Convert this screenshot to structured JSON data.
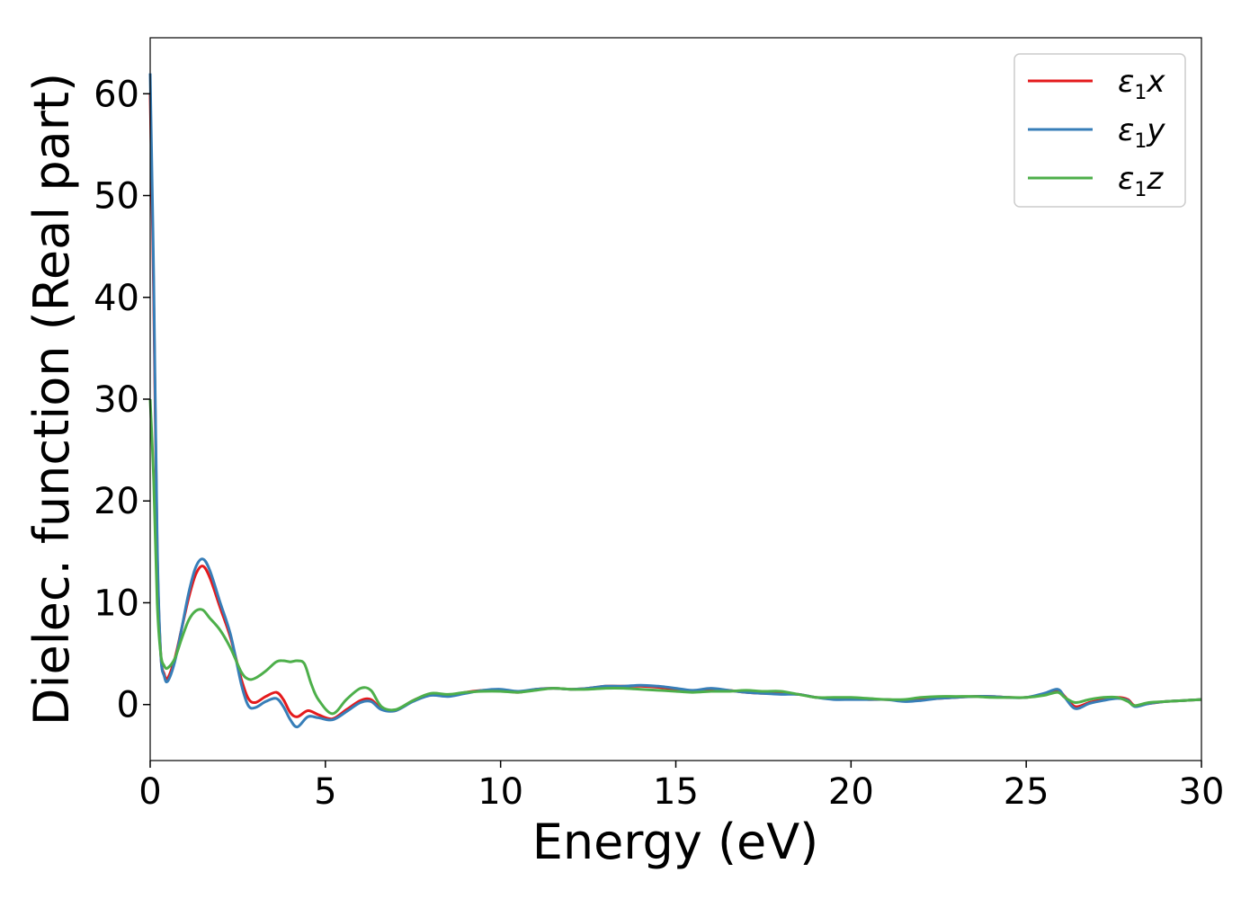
{
  "chart_data": {
    "type": "line",
    "xlabel": "Energy (eV)",
    "ylabel": "Dielec. function (Real part)",
    "xlim": [
      0,
      30
    ],
    "ylim": [
      -5.5,
      65.5
    ],
    "xticks": [
      0,
      5,
      10,
      15,
      20,
      25,
      30
    ],
    "yticks": [
      0,
      10,
      20,
      30,
      40,
      50,
      60
    ],
    "grid": false,
    "legend_position": "top-right",
    "series": [
      {
        "name": "ε1x",
        "legend_base": "ε",
        "legend_sub": "1",
        "legend_var": "x",
        "color": "#e41a1c",
        "x": [
          0,
          0.1,
          0.2,
          0.3,
          0.4,
          0.5,
          0.7,
          0.9,
          1.1,
          1.3,
          1.5,
          1.7,
          2.0,
          2.3,
          2.6,
          2.8,
          3.0,
          3.3,
          3.6,
          3.8,
          4.0,
          4.2,
          4.5,
          4.8,
          5.2,
          5.6,
          6.0,
          6.3,
          6.6,
          7.0,
          7.5,
          8.0,
          8.5,
          9.0,
          9.5,
          10.0,
          10.5,
          11.0,
          11.5,
          12.0,
          12.5,
          13.0,
          13.5,
          14.0,
          14.5,
          15.0,
          15.5,
          16.0,
          16.5,
          17.0,
          17.5,
          18.0,
          18.5,
          19.0,
          19.5,
          20.0,
          20.5,
          21.0,
          21.5,
          22.0,
          22.5,
          23.0,
          23.5,
          24.0,
          24.5,
          25.0,
          25.5,
          25.9,
          26.1,
          26.4,
          26.8,
          27.2,
          27.6,
          27.9,
          28.1,
          28.5,
          29.0,
          29.5,
          30.0
        ],
        "y": [
          60,
          40,
          15,
          5,
          3,
          2.6,
          4.5,
          7.5,
          10.5,
          12.8,
          13.6,
          12.5,
          9.5,
          6.5,
          2.5,
          0.6,
          0.2,
          0.8,
          1.2,
          0.5,
          -0.8,
          -1.2,
          -0.6,
          -1.0,
          -1.4,
          -0.5,
          0.4,
          0.5,
          -0.4,
          -0.6,
          0.4,
          1.0,
          0.9,
          1.2,
          1.4,
          1.4,
          1.2,
          1.5,
          1.6,
          1.5,
          1.6,
          1.8,
          1.8,
          1.8,
          1.7,
          1.5,
          1.3,
          1.5,
          1.4,
          1.2,
          1.1,
          1.1,
          1.0,
          0.7,
          0.6,
          0.6,
          0.5,
          0.5,
          0.4,
          0.5,
          0.6,
          0.7,
          0.8,
          0.8,
          0.7,
          0.7,
          1.0,
          1.4,
          0.8,
          -0.2,
          0.2,
          0.5,
          0.7,
          0.5,
          -0.1,
          0.1,
          0.3,
          0.4,
          0.5
        ]
      },
      {
        "name": "ε1y",
        "legend_base": "ε",
        "legend_sub": "1",
        "legend_var": "y",
        "color": "#377eb8",
        "x": [
          0,
          0.1,
          0.2,
          0.3,
          0.4,
          0.5,
          0.7,
          0.9,
          1.1,
          1.3,
          1.5,
          1.7,
          2.0,
          2.3,
          2.6,
          2.8,
          3.0,
          3.3,
          3.6,
          3.8,
          4.0,
          4.2,
          4.5,
          4.8,
          5.2,
          5.6,
          6.0,
          6.3,
          6.6,
          7.0,
          7.5,
          8.0,
          8.5,
          9.0,
          9.5,
          10.0,
          10.5,
          11.0,
          11.5,
          12.0,
          12.5,
          13.0,
          13.5,
          14.0,
          14.5,
          15.0,
          15.5,
          16.0,
          16.5,
          17.0,
          17.5,
          18.0,
          18.5,
          19.0,
          19.5,
          20.0,
          20.5,
          21.0,
          21.5,
          22.0,
          22.5,
          23.0,
          23.5,
          24.0,
          24.5,
          25.0,
          25.5,
          25.9,
          26.1,
          26.4,
          26.8,
          27.2,
          27.6,
          27.9,
          28.1,
          28.5,
          29.0,
          29.5,
          30.0
        ],
        "y": [
          62,
          42,
          16,
          5,
          2.8,
          2.3,
          4.2,
          7.5,
          11.0,
          13.5,
          14.3,
          13.2,
          10.0,
          6.8,
          2.0,
          -0.1,
          -0.3,
          0.3,
          0.6,
          -0.2,
          -1.5,
          -2.2,
          -1.2,
          -1.3,
          -1.5,
          -0.7,
          0.2,
          0.3,
          -0.5,
          -0.6,
          0.3,
          0.9,
          0.8,
          1.1,
          1.4,
          1.5,
          1.3,
          1.5,
          1.6,
          1.5,
          1.6,
          1.8,
          1.8,
          1.9,
          1.8,
          1.6,
          1.4,
          1.6,
          1.4,
          1.2,
          1.1,
          1.0,
          1.0,
          0.7,
          0.5,
          0.5,
          0.5,
          0.5,
          0.3,
          0.4,
          0.6,
          0.7,
          0.8,
          0.8,
          0.7,
          0.7,
          1.1,
          1.5,
          0.7,
          -0.4,
          0.1,
          0.4,
          0.6,
          0.4,
          -0.2,
          0.1,
          0.3,
          0.4,
          0.5
        ]
      },
      {
        "name": "ε1z",
        "legend_base": "ε",
        "legend_sub": "1",
        "legend_var": "z",
        "color": "#4daf4a",
        "x": [
          0,
          0.1,
          0.2,
          0.3,
          0.4,
          0.5,
          0.7,
          0.9,
          1.1,
          1.3,
          1.5,
          1.7,
          2.0,
          2.3,
          2.6,
          2.8,
          3.0,
          3.3,
          3.6,
          3.8,
          4.0,
          4.2,
          4.4,
          4.6,
          4.8,
          5.2,
          5.6,
          6.0,
          6.3,
          6.6,
          7.0,
          7.5,
          8.0,
          8.5,
          9.0,
          9.5,
          10.0,
          10.5,
          11.0,
          11.5,
          12.0,
          12.5,
          13.0,
          13.5,
          14.0,
          14.5,
          15.0,
          15.5,
          16.0,
          16.5,
          17.0,
          17.5,
          18.0,
          18.5,
          19.0,
          19.5,
          20.0,
          20.5,
          21.0,
          21.5,
          22.0,
          22.5,
          23.0,
          23.5,
          24.0,
          24.5,
          25.0,
          25.5,
          25.9,
          26.1,
          26.4,
          26.8,
          27.2,
          27.6,
          27.9,
          28.1,
          28.5,
          29.0,
          29.5,
          30.0
        ],
        "y": [
          30,
          22,
          10,
          5,
          3.8,
          3.6,
          4.5,
          6.5,
          8.3,
          9.2,
          9.3,
          8.5,
          7.3,
          5.5,
          3.2,
          2.5,
          2.6,
          3.3,
          4.2,
          4.3,
          4.2,
          4.3,
          4.0,
          2.0,
          0.5,
          -0.9,
          0.5,
          1.6,
          1.4,
          -0.2,
          -0.5,
          0.4,
          1.1,
          1.0,
          1.2,
          1.3,
          1.3,
          1.2,
          1.4,
          1.6,
          1.5,
          1.5,
          1.6,
          1.6,
          1.5,
          1.4,
          1.3,
          1.2,
          1.3,
          1.3,
          1.4,
          1.3,
          1.3,
          1.0,
          0.7,
          0.7,
          0.7,
          0.6,
          0.5,
          0.5,
          0.7,
          0.8,
          0.8,
          0.8,
          0.7,
          0.7,
          0.7,
          0.9,
          1.2,
          0.7,
          0.2,
          0.5,
          0.7,
          0.7,
          0.3,
          -0.1,
          0.2,
          0.3,
          0.4,
          0.5
        ]
      }
    ]
  }
}
